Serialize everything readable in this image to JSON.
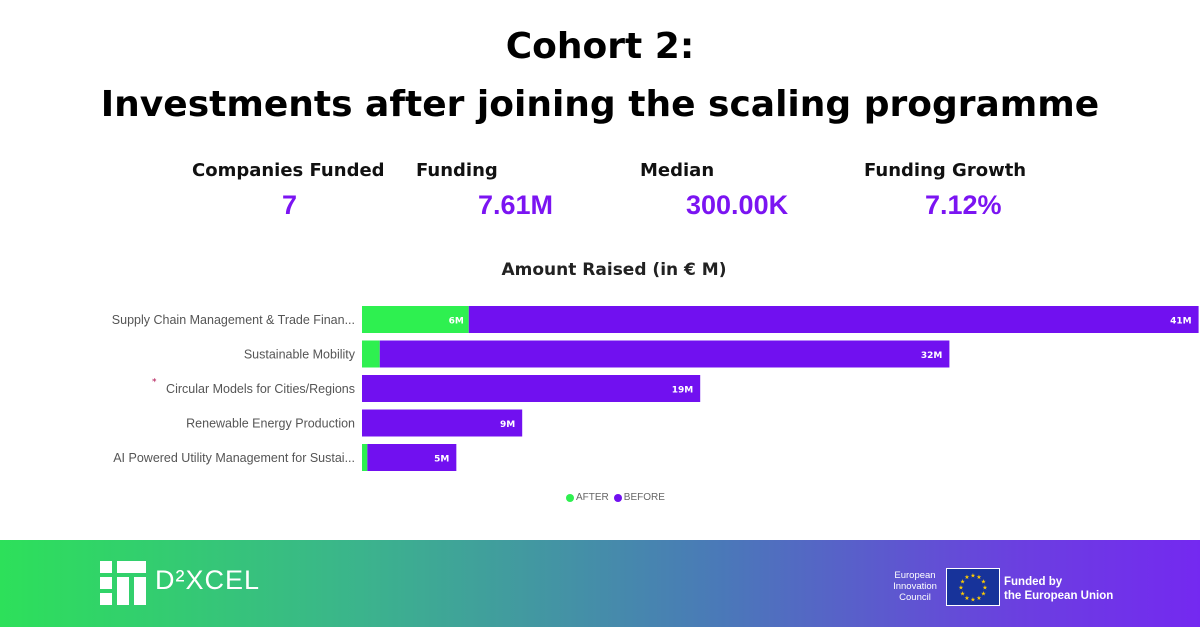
{
  "header": {
    "title_line1": "Cohort 2:",
    "title_line2": "Investments after joining the scaling programme"
  },
  "kpis": [
    {
      "label": "Companies Funded",
      "value": "7"
    },
    {
      "label": "Funding",
      "value": "7.61M"
    },
    {
      "label": "Median",
      "value": "300.00K"
    },
    {
      "label": "Funding Growth",
      "value": "7.12%"
    }
  ],
  "chart_data": {
    "type": "bar",
    "orientation": "horizontal",
    "stacked": true,
    "title": "Amount Raised (in € M)",
    "categories": [
      "Supply Chain Management & Trade Finan...",
      "Sustainable Mobility",
      "Circular Models for Cities/Regions",
      "Renewable Energy Production",
      "AI Powered Utility Management for Sustai..."
    ],
    "series": [
      {
        "name": "AFTER",
        "color": "#2ef050",
        "values": [
          6,
          1,
          0,
          0,
          0.3
        ],
        "labels": [
          "6M",
          "",
          "",
          "",
          ""
        ]
      },
      {
        "name": "BEFORE",
        "color": "#7110f0",
        "values": [
          41,
          32,
          19,
          9,
          5
        ],
        "labels": [
          "41M",
          "32M",
          "19M",
          "9M",
          "5M"
        ]
      }
    ],
    "legend": {
      "position": "bottom",
      "items": [
        "AFTER",
        "BEFORE"
      ]
    },
    "xlim": [
      0,
      50
    ],
    "marker": "*"
  },
  "footer": {
    "brand": "D²XCEL",
    "eic_text": "European Innovation Council",
    "eu_line1": "Funded by",
    "eu_line2": "the European Union"
  },
  "colors": {
    "accent": "#7b14f2",
    "after": "#2ef050",
    "before": "#7110f0"
  }
}
